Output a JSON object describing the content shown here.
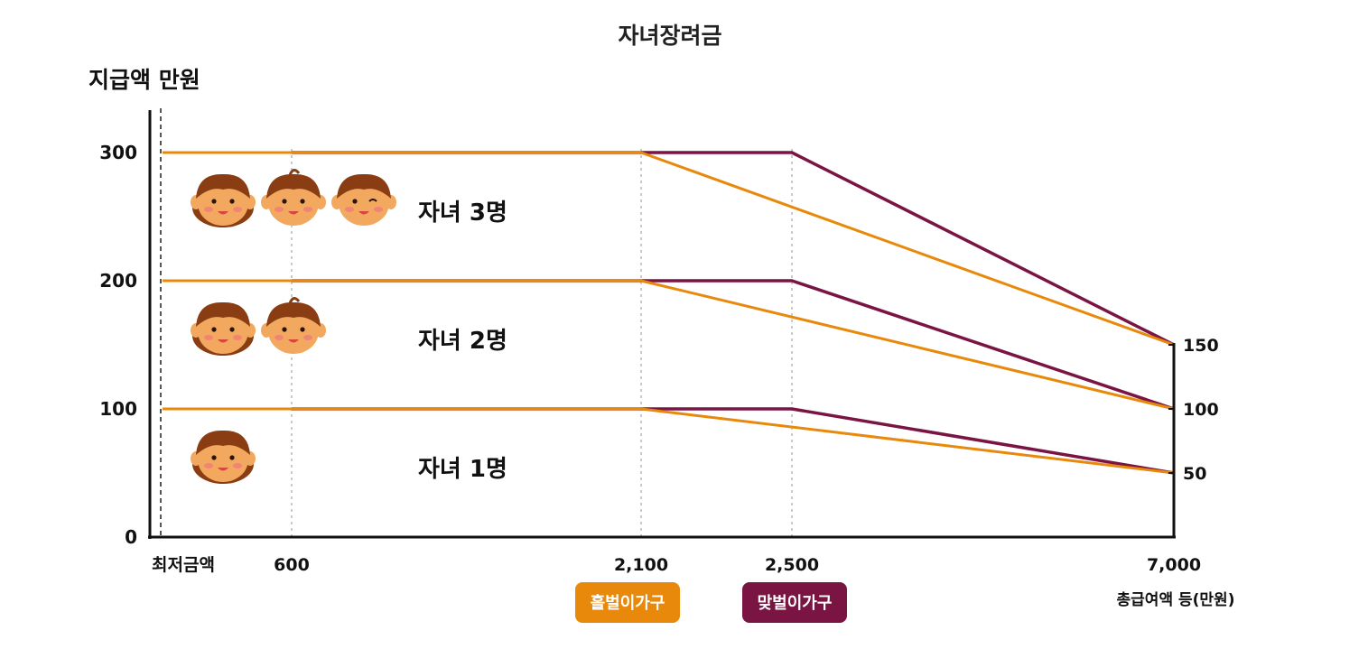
{
  "chart_data": {
    "type": "line",
    "title": "자녀장려금",
    "ylabel": "지급액 만원",
    "xlabel": "총급여액 등(만원)",
    "ylim": [
      0,
      330
    ],
    "y_ticks": [
      "0",
      "100",
      "200",
      "300"
    ],
    "y_tick_values": [
      0,
      100,
      200,
      300
    ],
    "x_ticks": [
      {
        "label": "최저금액",
        "value": 0
      },
      {
        "label": "600",
        "value": 600
      },
      {
        "label": "2,100",
        "value": 2100
      },
      {
        "label": "2,500",
        "value": 2500
      },
      {
        "label": "7,000",
        "value": 7000
      }
    ],
    "right_ticks": [
      "150",
      "100",
      "50"
    ],
    "right_tick_values": [
      150,
      100,
      50
    ],
    "series": [
      {
        "name": "홀벌이가구",
        "color": "#E8890C",
        "group": "자녀 3명",
        "points": [
          [
            0,
            300
          ],
          [
            2100,
            300
          ],
          [
            7000,
            150
          ]
        ]
      },
      {
        "name": "맞벌이가구",
        "color": "#7A1442",
        "group": "자녀 3명",
        "points": [
          [
            600,
            300
          ],
          [
            2500,
            300
          ],
          [
            7000,
            150
          ]
        ]
      },
      {
        "name": "홀벌이가구",
        "color": "#E8890C",
        "group": "자녀 2명",
        "points": [
          [
            0,
            200
          ],
          [
            2100,
            200
          ],
          [
            7000,
            100
          ]
        ]
      },
      {
        "name": "맞벌이가구",
        "color": "#7A1442",
        "group": "자녀 2명",
        "points": [
          [
            600,
            200
          ],
          [
            2500,
            200
          ],
          [
            7000,
            100
          ]
        ]
      },
      {
        "name": "홀벌이가구",
        "color": "#E8890C",
        "group": "자녀 1명",
        "points": [
          [
            0,
            100
          ],
          [
            2100,
            100
          ],
          [
            7000,
            50
          ]
        ]
      },
      {
        "name": "맞벌이가구",
        "color": "#7A1442",
        "group": "자녀 1명",
        "points": [
          [
            600,
            100
          ],
          [
            2500,
            100
          ],
          [
            7000,
            50
          ]
        ]
      }
    ],
    "annotations": [
      {
        "text": "자녀 3명",
        "y": 250,
        "x": 2000,
        "faces": 3
      },
      {
        "text": "자녀 2명",
        "y": 150,
        "x": 2000,
        "faces": 2
      },
      {
        "text": "자녀 1명",
        "y": 50,
        "x": 2000,
        "faces": 1
      }
    ],
    "legend": [
      {
        "label": "홀벌이가구",
        "color": "#E8890C"
      },
      {
        "label": "맞벌이가구",
        "color": "#7A1442"
      }
    ],
    "legend_position": "bottom-center"
  }
}
